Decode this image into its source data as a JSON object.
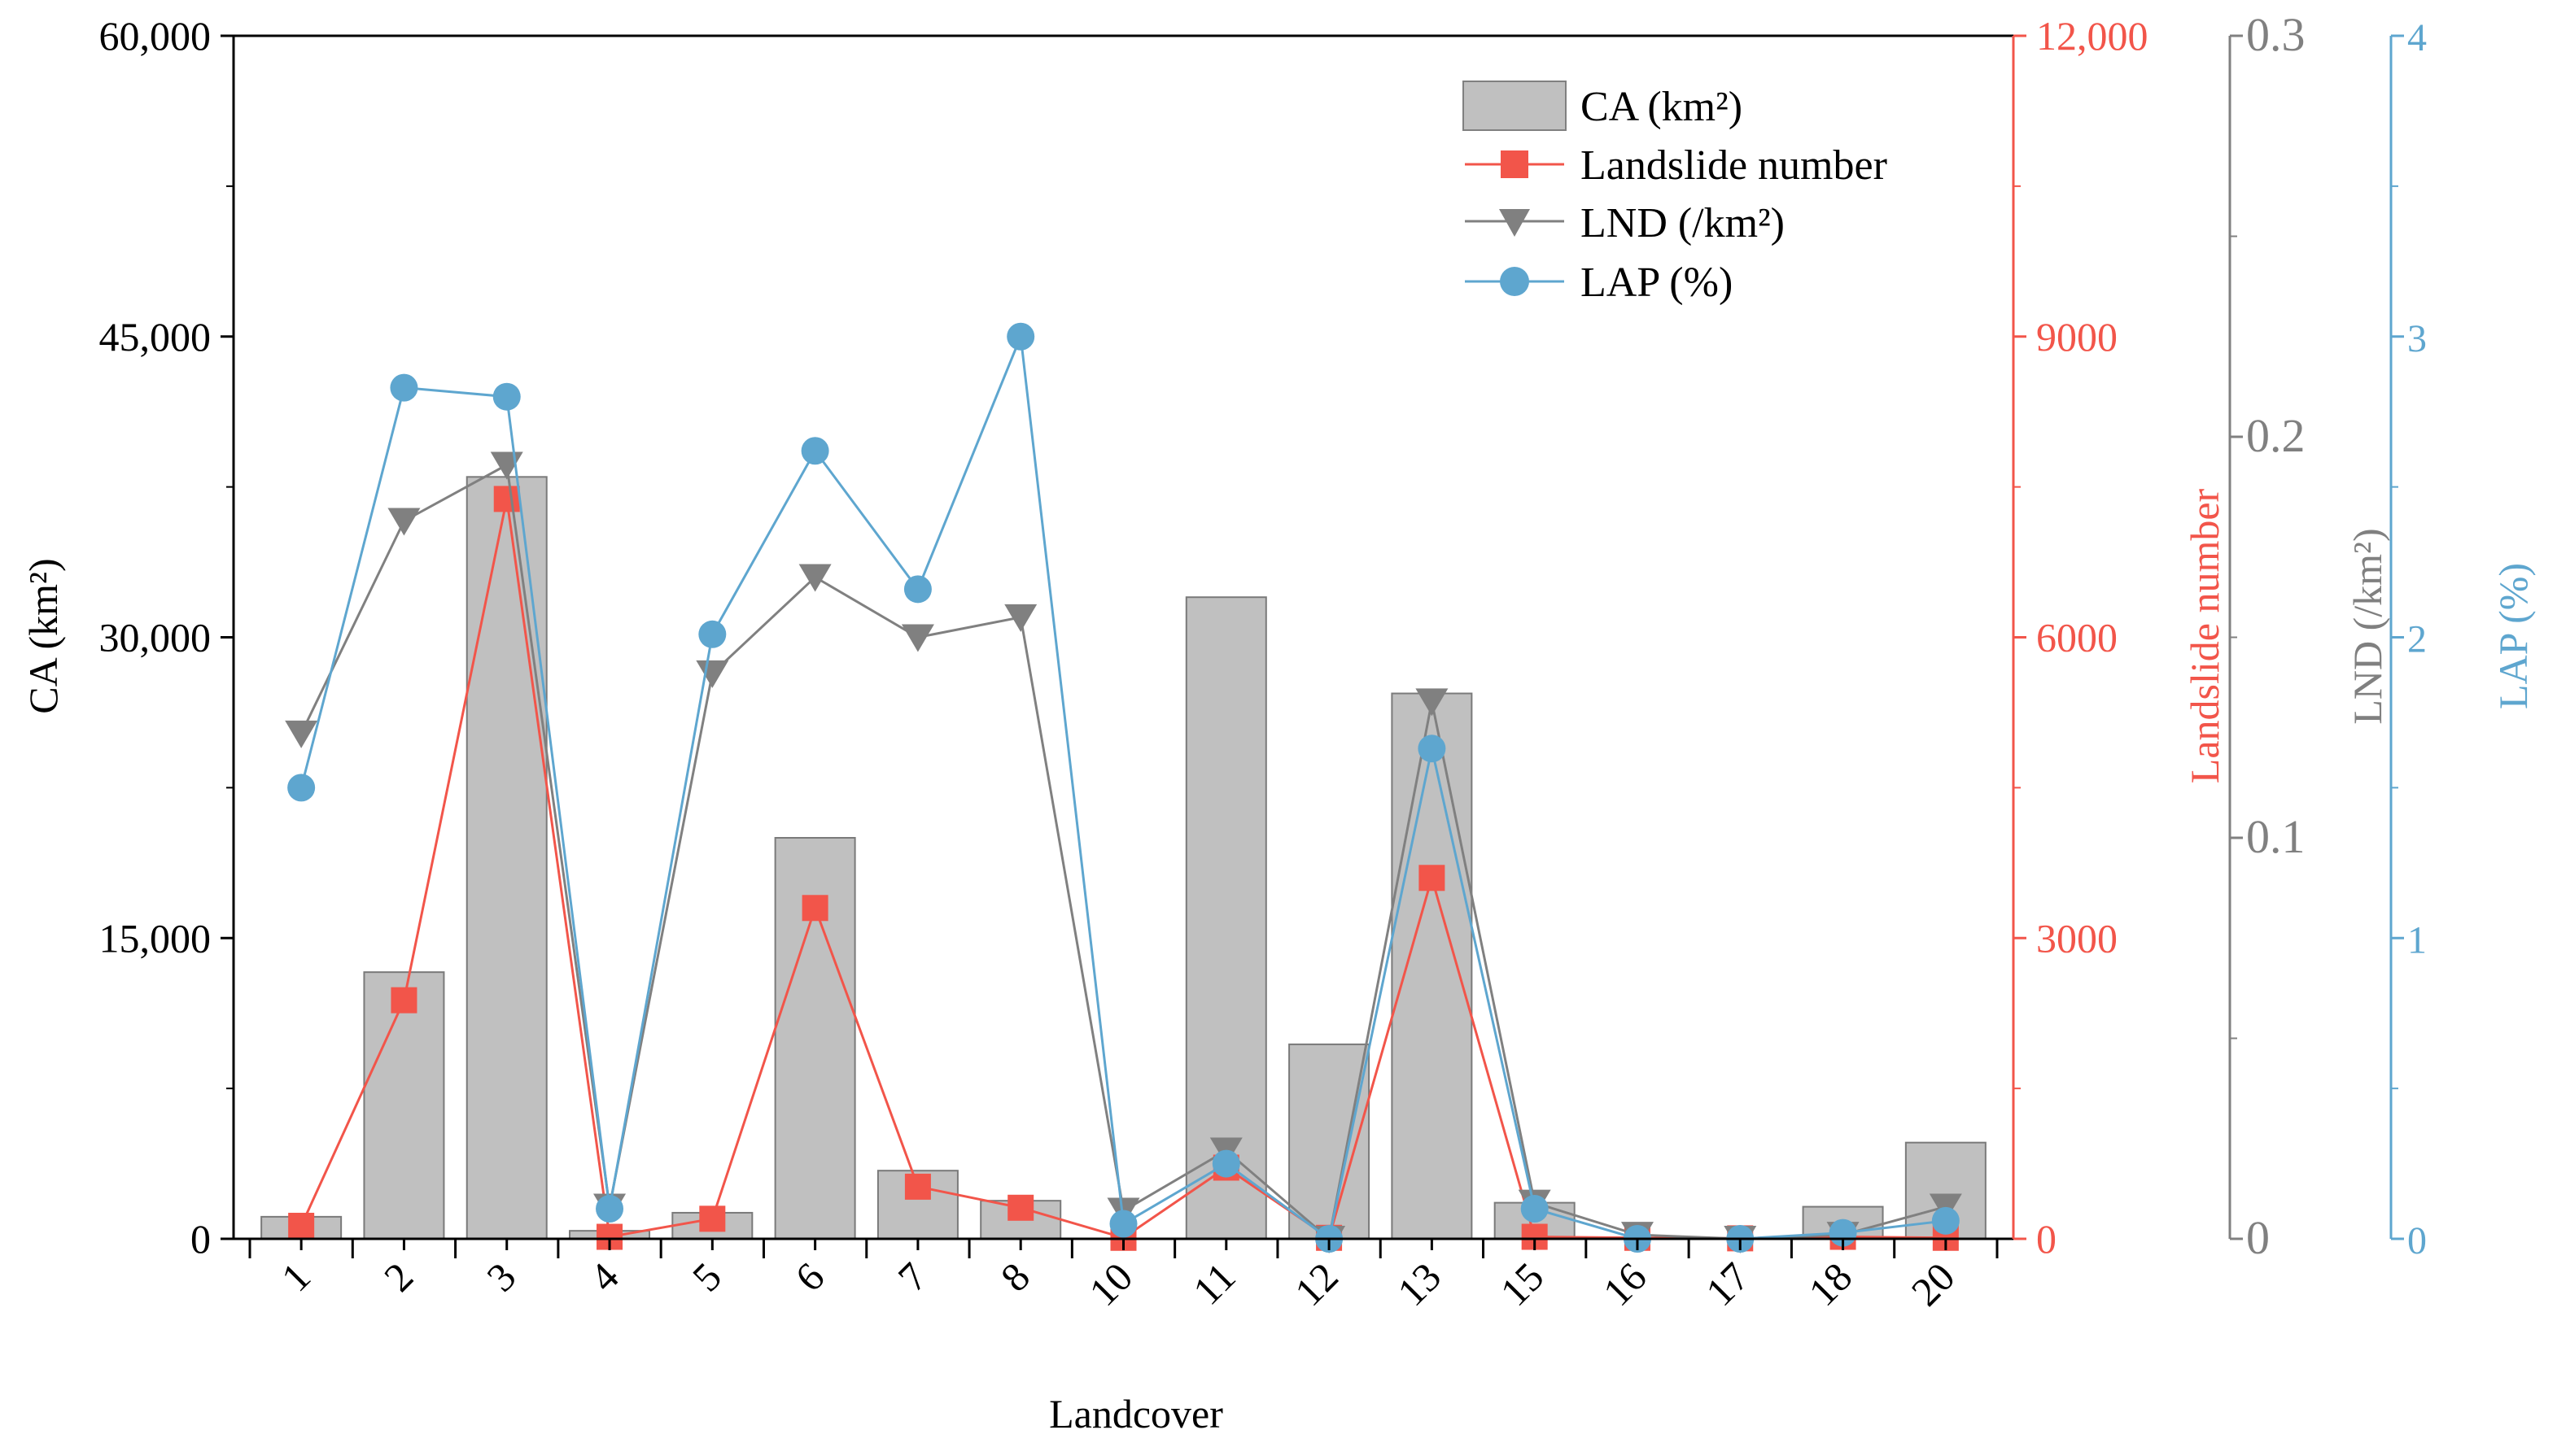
{
  "chart_data": {
    "type": "bar-line-combo",
    "xlabel": "Landcover",
    "categories": [
      "1",
      "2",
      "3",
      "4",
      "5",
      "6",
      "7",
      "8",
      "10",
      "11",
      "12",
      "13",
      "15",
      "16",
      "17",
      "18",
      "20"
    ],
    "series": [
      {
        "name": "CA (km²)",
        "type": "bar",
        "axis": "CA",
        "color": "#c0c0c0",
        "values": [
          1100,
          13300,
          38000,
          400,
          1300,
          20000,
          3400,
          1900,
          0,
          32000,
          9700,
          27200,
          1800,
          50,
          30,
          1600,
          4800
        ]
      },
      {
        "name": "Landslide number",
        "type": "line",
        "axis": "Landslide",
        "color": "#f2554a",
        "marker": "square",
        "values": [
          130,
          2380,
          7380,
          20,
          200,
          3300,
          520,
          310,
          10,
          710,
          10,
          3600,
          20,
          10,
          5,
          20,
          10
        ]
      },
      {
        "name": "LND (/km²)",
        "type": "line",
        "axis": "LND",
        "color": "#808080",
        "marker": "triangle-down",
        "values": [
          0.126,
          0.179,
          0.193,
          0.008,
          0.141,
          0.165,
          0.15,
          0.155,
          0.007,
          0.022,
          0.0,
          0.134,
          0.009,
          0.001,
          0.0,
          0.001,
          0.008
        ]
      },
      {
        "name": "LAP (%)",
        "type": "line",
        "axis": "LAP",
        "color": "#5ea6cf",
        "marker": "circle",
        "values": [
          1.5,
          2.83,
          2.8,
          0.1,
          2.01,
          2.62,
          2.16,
          3.0,
          0.05,
          0.25,
          0.0,
          1.63,
          0.1,
          0.0,
          0.0,
          0.02,
          0.06
        ]
      }
    ],
    "axes": {
      "CA": {
        "label": "CA (km²)",
        "range": [
          0,
          60000
        ],
        "ticks": [
          "0",
          "15,000",
          "30,000",
          "45,000",
          "60,000"
        ],
        "color": "#000000"
      },
      "Landslide": {
        "label": "Landslide number",
        "range": [
          0,
          12000
        ],
        "ticks": [
          "0",
          "3000",
          "6000",
          "9000",
          "12,000"
        ],
        "color": "#f2554a"
      },
      "LND": {
        "label": "LND (/km²)",
        "range": [
          0,
          0.3
        ],
        "ticks": [
          "0",
          "0.1",
          "0.2",
          "0.3"
        ],
        "color": "#808080"
      },
      "LAP": {
        "label": "LAP (%)",
        "range": [
          0,
          4
        ],
        "ticks": [
          "0",
          "1",
          "2",
          "3",
          "4"
        ],
        "color": "#5ea6cf"
      }
    },
    "legend": {
      "position": "top-right",
      "entries": [
        "CA (km²)",
        "Landslide number",
        "LND (/km²)",
        "LAP (%)"
      ]
    }
  }
}
